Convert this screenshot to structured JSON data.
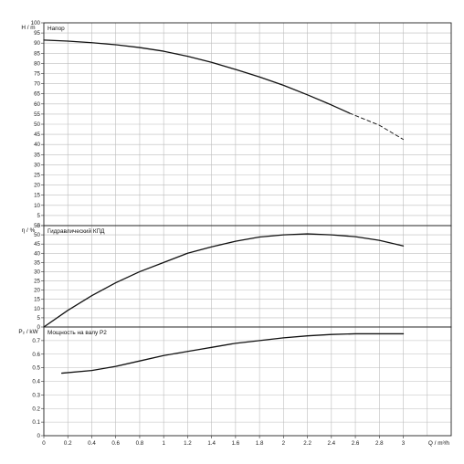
{
  "chart_data": [
    {
      "type": "line",
      "title": "Напор",
      "ylabel": "H / m",
      "xlim": [
        0,
        3.4
      ],
      "ylim": [
        0,
        100
      ],
      "yticks": [
        0,
        5,
        10,
        15,
        20,
        25,
        30,
        35,
        40,
        45,
        50,
        55,
        60,
        65,
        70,
        75,
        80,
        85,
        90,
        95,
        100
      ],
      "grid": true,
      "series": [
        {
          "values": [
            [
              0,
              91.5
            ],
            [
              0.2,
              91
            ],
            [
              0.4,
              90.2
            ],
            [
              0.6,
              89.2
            ],
            [
              0.8,
              87.8
            ],
            [
              1.0,
              86
            ],
            [
              1.2,
              83.5
            ],
            [
              1.4,
              80.5
            ],
            [
              1.6,
              77
            ],
            [
              1.8,
              73.3
            ],
            [
              2.0,
              69.2
            ],
            [
              2.2,
              64.5
            ],
            [
              2.4,
              59.5
            ],
            [
              2.55,
              55.5
            ]
          ],
          "style": "solid"
        },
        {
          "values": [
            [
              2.55,
              55.5
            ],
            [
              2.8,
              49.5
            ],
            [
              3.0,
              42.5
            ]
          ],
          "style": "dashed"
        }
      ]
    },
    {
      "type": "line",
      "title": "Гидравлический КПД",
      "ylabel": "η / %",
      "xlim": [
        0,
        3.4
      ],
      "ylim": [
        0,
        55
      ],
      "yticks": [
        0,
        5,
        10,
        15,
        20,
        25,
        30,
        35,
        40,
        45,
        50,
        55
      ],
      "grid": true,
      "series": [
        {
          "values": [
            [
              0,
              0
            ],
            [
              0.2,
              9
            ],
            [
              0.4,
              17
            ],
            [
              0.6,
              24
            ],
            [
              0.8,
              30
            ],
            [
              1.0,
              35
            ],
            [
              1.2,
              40
            ],
            [
              1.4,
              43.5
            ],
            [
              1.6,
              46.5
            ],
            [
              1.8,
              48.8
            ],
            [
              2.0,
              50
            ],
            [
              2.2,
              50.5
            ],
            [
              2.4,
              50
            ],
            [
              2.6,
              49
            ],
            [
              2.8,
              47
            ],
            [
              3.0,
              44
            ]
          ],
          "style": "solid"
        }
      ]
    },
    {
      "type": "line",
      "title": "Мощность на валу P2",
      "ylabel": "P₂ / kW",
      "xlabel": "Q / m³/h",
      "xlim": [
        0,
        3.4
      ],
      "ylim": [
        0,
        0.8
      ],
      "xticks": [
        "0",
        "0.2",
        "0.4",
        "0.6",
        "0.8",
        "1",
        "1.2",
        "1.4",
        "1.6",
        "1.8",
        "2",
        "2.2",
        "2.4",
        "2.6",
        "2.8",
        "3"
      ],
      "yticks": [
        "0",
        "0.1",
        "0.2",
        "0.3",
        "0.4",
        "0.5",
        "0.6",
        "0.7"
      ],
      "grid": true,
      "series": [
        {
          "values": [
            [
              0.15,
              0.46
            ],
            [
              0.4,
              0.48
            ],
            [
              0.6,
              0.51
            ],
            [
              0.8,
              0.55
            ],
            [
              1.0,
              0.59
            ],
            [
              1.2,
              0.62
            ],
            [
              1.4,
              0.65
            ],
            [
              1.6,
              0.68
            ],
            [
              1.8,
              0.7
            ],
            [
              2.0,
              0.72
            ],
            [
              2.2,
              0.735
            ],
            [
              2.4,
              0.745
            ],
            [
              2.6,
              0.75
            ],
            [
              2.8,
              0.75
            ],
            [
              3.0,
              0.75
            ]
          ],
          "style": "solid"
        }
      ]
    }
  ]
}
